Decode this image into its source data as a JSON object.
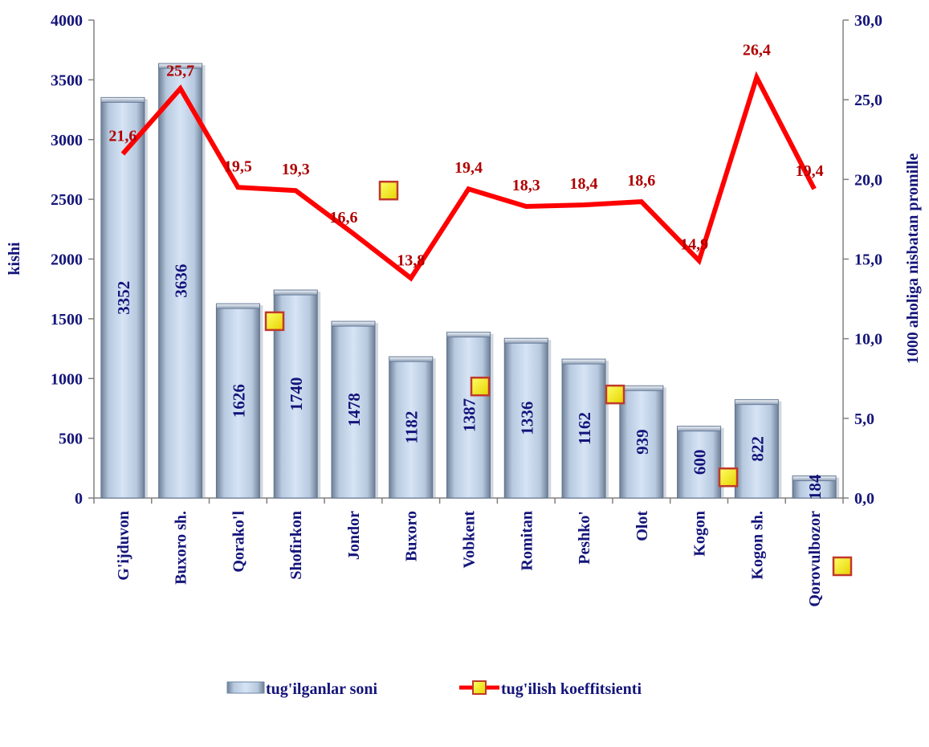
{
  "chart_data": {
    "type": "bar",
    "categories": [
      "G'ijduvon",
      "Buxoro sh.",
      "Qorako'l",
      "Shofirkon",
      "Jondor",
      "Buxoro",
      "Vobkent",
      "Romitan",
      "Peshko'",
      "Olot",
      "Kogon",
      "Kogon sh.",
      "Qorovulbozor"
    ],
    "series": [
      {
        "name": "tug'ilganlar soni",
        "type": "bar",
        "axis": "left",
        "values": [
          3352,
          3636,
          1626,
          1740,
          1478,
          1182,
          1387,
          1336,
          1162,
          939,
          600,
          822,
          184
        ],
        "labels": [
          "3352",
          "3636",
          "1626",
          "1740",
          "1478",
          "1182",
          "1387",
          "1336",
          "1162",
          "939",
          "600",
          "822",
          "184"
        ]
      },
      {
        "name": "tug'ilish koeffitsienti",
        "type": "line",
        "axis": "right",
        "values": [
          21.6,
          25.7,
          19.5,
          19.3,
          16.6,
          13.8,
          19.4,
          18.3,
          18.4,
          18.6,
          14.9,
          26.4,
          19.4
        ],
        "labels": [
          "21,6",
          "25,7",
          "19,5",
          "19,3",
          "16,6",
          "13,8",
          "19,4",
          "18,3",
          "18,4",
          "18,6",
          "14,9",
          "26,4",
          "19,4"
        ]
      }
    ],
    "ylabel": "kishi",
    "y2label": "1000 aholiga nisbatan promille",
    "ylim": [
      0,
      4000
    ],
    "y2lim": [
      0,
      30
    ],
    "yticks": [
      "0",
      "500",
      "1000",
      "1500",
      "2000",
      "2500",
      "3000",
      "3500",
      "4000"
    ],
    "y2ticks": [
      "0,0",
      "5,0",
      "10,0",
      "15,0",
      "20,0",
      "25,0",
      "30,0"
    ],
    "stray_markers_y2": [
      11.1,
      19.3,
      7.0,
      6.5,
      1.3
    ],
    "stray_marker_below_axis": true,
    "legend": {
      "placement": "bottom",
      "items": [
        "tug'ilganlar soni",
        "tug'ilish koeffitsienti"
      ]
    },
    "colors": {
      "axis_text": "#14147a",
      "bar_fill": "#c6d9f1",
      "bar_edge": "#6e86a6",
      "line": "#ff0000",
      "line_label": "#b00000",
      "marker_fill": "#ffff00",
      "marker_edge": "#c0392b"
    },
    "grid": false
  }
}
